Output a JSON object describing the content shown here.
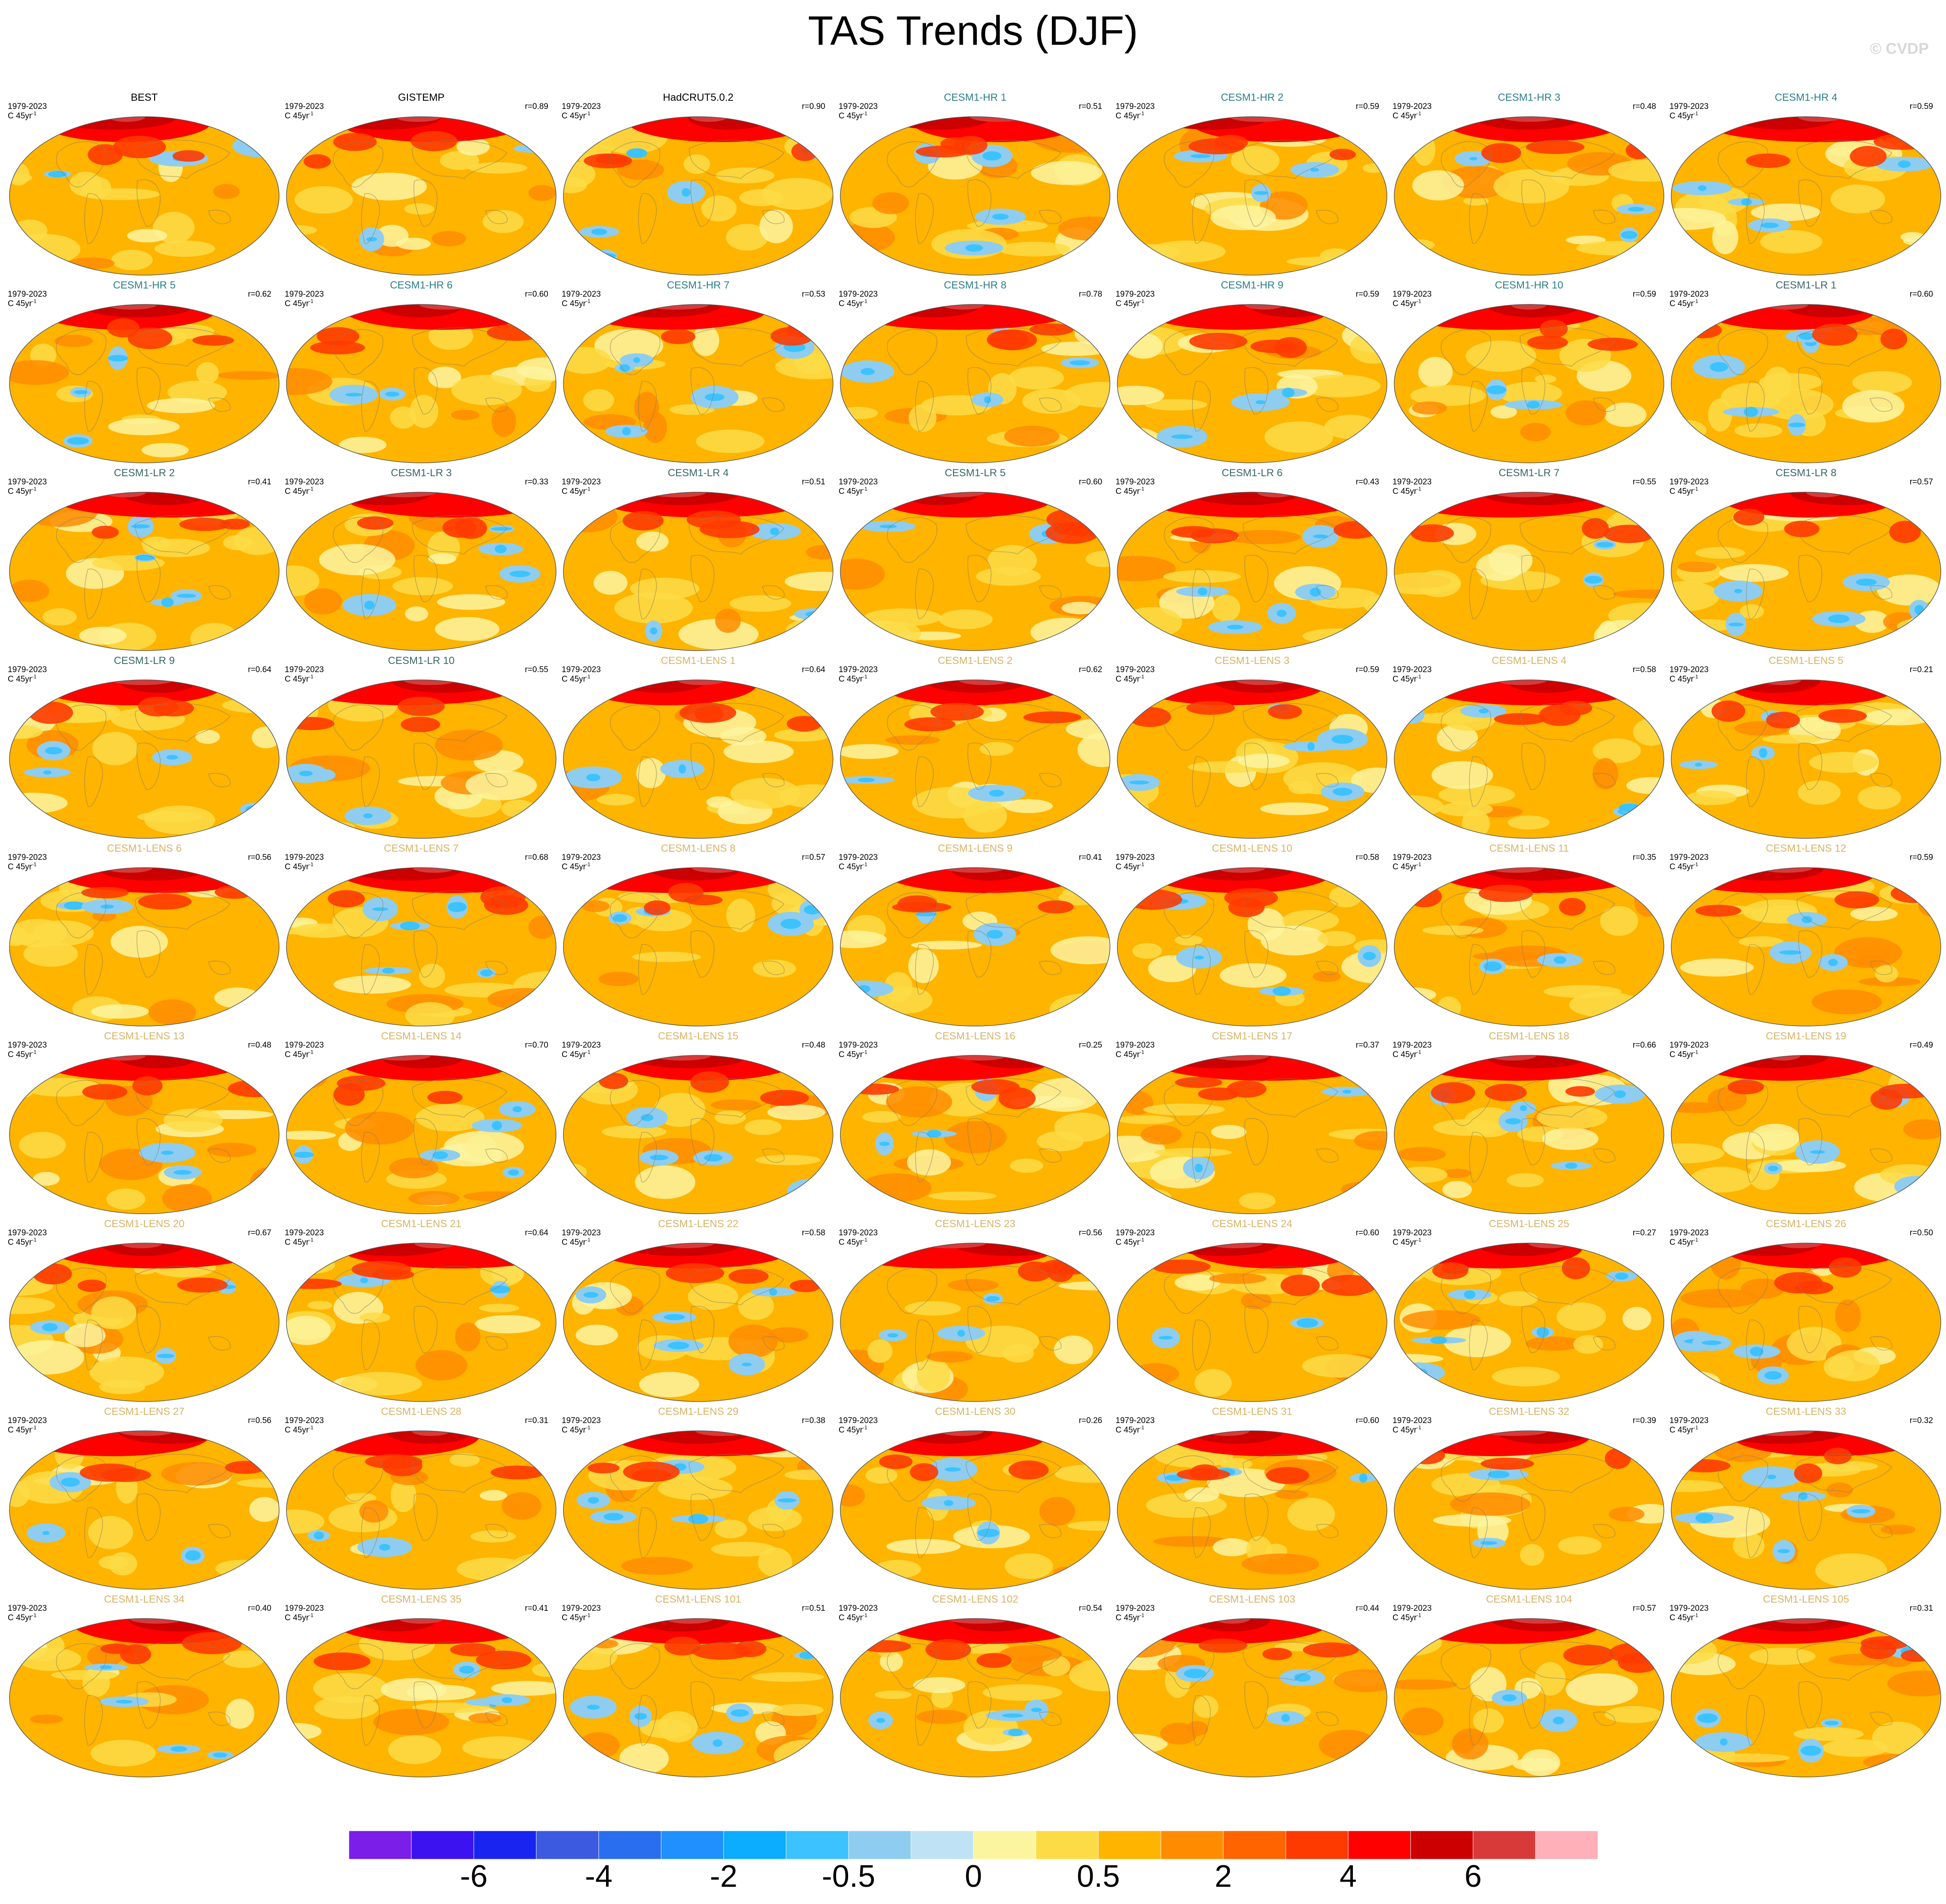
{
  "title": "TAS Trends (DJF)",
  "copyright": "© CVDP",
  "period": "1979-2023",
  "units": "C 45yr",
  "units_exponent": "-1",
  "name_colors": {
    "obs": "#000000",
    "hr": "#2a7f88",
    "lr": "#3a6668",
    "lens": "#d8b466"
  },
  "panels": [
    {
      "name": "BEST",
      "group": "obs",
      "corr": ""
    },
    {
      "name": "GISTEMP",
      "group": "obs",
      "corr": "r=0.89"
    },
    {
      "name": "HadCRUT5.0.2",
      "group": "obs",
      "corr": "r=0.90"
    },
    {
      "name": "CESM1-HR 1",
      "group": "hr",
      "corr": "r=0.51"
    },
    {
      "name": "CESM1-HR 2",
      "group": "hr",
      "corr": "r=0.59"
    },
    {
      "name": "CESM1-HR 3",
      "group": "hr",
      "corr": "r=0.48"
    },
    {
      "name": "CESM1-HR 4",
      "group": "hr",
      "corr": "r=0.59"
    },
    {
      "name": "CESM1-HR 5",
      "group": "hr",
      "corr": "r=0.62"
    },
    {
      "name": "CESM1-HR 6",
      "group": "hr",
      "corr": "r=0.60"
    },
    {
      "name": "CESM1-HR 7",
      "group": "hr",
      "corr": "r=0.53"
    },
    {
      "name": "CESM1-HR 8",
      "group": "hr",
      "corr": "r=0.78"
    },
    {
      "name": "CESM1-HR 9",
      "group": "hr",
      "corr": "r=0.59"
    },
    {
      "name": "CESM1-HR 10",
      "group": "hr",
      "corr": "r=0.59"
    },
    {
      "name": "CESM1-LR 1",
      "group": "lr",
      "corr": "r=0.60"
    },
    {
      "name": "CESM1-LR 2",
      "group": "lr",
      "corr": "r=0.41"
    },
    {
      "name": "CESM1-LR 3",
      "group": "lr",
      "corr": "r=0.33"
    },
    {
      "name": "CESM1-LR 4",
      "group": "lr",
      "corr": "r=0.51"
    },
    {
      "name": "CESM1-LR 5",
      "group": "lr",
      "corr": "r=0.60"
    },
    {
      "name": "CESM1-LR 6",
      "group": "lr",
      "corr": "r=0.43"
    },
    {
      "name": "CESM1-LR 7",
      "group": "lr",
      "corr": "r=0.55"
    },
    {
      "name": "CESM1-LR 8",
      "group": "lr",
      "corr": "r=0.57"
    },
    {
      "name": "CESM1-LR 9",
      "group": "lr",
      "corr": "r=0.64"
    },
    {
      "name": "CESM1-LR 10",
      "group": "lr",
      "corr": "r=0.55"
    },
    {
      "name": "CESM1-LENS 1",
      "group": "lens",
      "corr": "r=0.64"
    },
    {
      "name": "CESM1-LENS 2",
      "group": "lens",
      "corr": "r=0.62"
    },
    {
      "name": "CESM1-LENS 3",
      "group": "lens",
      "corr": "r=0.59"
    },
    {
      "name": "CESM1-LENS 4",
      "group": "lens",
      "corr": "r=0.58"
    },
    {
      "name": "CESM1-LENS 5",
      "group": "lens",
      "corr": "r=0.21"
    },
    {
      "name": "CESM1-LENS 6",
      "group": "lens",
      "corr": "r=0.56"
    },
    {
      "name": "CESM1-LENS 7",
      "group": "lens",
      "corr": "r=0.68"
    },
    {
      "name": "CESM1-LENS 8",
      "group": "lens",
      "corr": "r=0.57"
    },
    {
      "name": "CESM1-LENS 9",
      "group": "lens",
      "corr": "r=0.41"
    },
    {
      "name": "CESM1-LENS 10",
      "group": "lens",
      "corr": "r=0.58"
    },
    {
      "name": "CESM1-LENS 11",
      "group": "lens",
      "corr": "r=0.35"
    },
    {
      "name": "CESM1-LENS 12",
      "group": "lens",
      "corr": "r=0.59"
    },
    {
      "name": "CESM1-LENS 13",
      "group": "lens",
      "corr": "r=0.48"
    },
    {
      "name": "CESM1-LENS 14",
      "group": "lens",
      "corr": "r=0.70"
    },
    {
      "name": "CESM1-LENS 15",
      "group": "lens",
      "corr": "r=0.48"
    },
    {
      "name": "CESM1-LENS 16",
      "group": "lens",
      "corr": "r=0.25"
    },
    {
      "name": "CESM1-LENS 17",
      "group": "lens",
      "corr": "r=0.37"
    },
    {
      "name": "CESM1-LENS 18",
      "group": "lens",
      "corr": "r=0.66"
    },
    {
      "name": "CESM1-LENS 19",
      "group": "lens",
      "corr": "r=0.49"
    },
    {
      "name": "CESM1-LENS 20",
      "group": "lens",
      "corr": "r=0.67"
    },
    {
      "name": "CESM1-LENS 21",
      "group": "lens",
      "corr": "r=0.64"
    },
    {
      "name": "CESM1-LENS 22",
      "group": "lens",
      "corr": "r=0.58"
    },
    {
      "name": "CESM1-LENS 23",
      "group": "lens",
      "corr": "r=0.56"
    },
    {
      "name": "CESM1-LENS 24",
      "group": "lens",
      "corr": "r=0.60"
    },
    {
      "name": "CESM1-LENS 25",
      "group": "lens",
      "corr": "r=0.27"
    },
    {
      "name": "CESM1-LENS 26",
      "group": "lens",
      "corr": "r=0.50"
    },
    {
      "name": "CESM1-LENS 27",
      "group": "lens",
      "corr": "r=0.56"
    },
    {
      "name": "CESM1-LENS 28",
      "group": "lens",
      "corr": "r=0.31"
    },
    {
      "name": "CESM1-LENS 29",
      "group": "lens",
      "corr": "r=0.38"
    },
    {
      "name": "CESM1-LENS 30",
      "group": "lens",
      "corr": "r=0.26"
    },
    {
      "name": "CESM1-LENS 31",
      "group": "lens",
      "corr": "r=0.60"
    },
    {
      "name": "CESM1-LENS 32",
      "group": "lens",
      "corr": "r=0.39"
    },
    {
      "name": "CESM1-LENS 33",
      "group": "lens",
      "corr": "r=0.32"
    },
    {
      "name": "CESM1-LENS 34",
      "group": "lens",
      "corr": "r=0.40"
    },
    {
      "name": "CESM1-LENS 35",
      "group": "lens",
      "corr": "r=0.41"
    },
    {
      "name": "CESM1-LENS 101",
      "group": "lens",
      "corr": "r=0.51"
    },
    {
      "name": "CESM1-LENS 102",
      "group": "lens",
      "corr": "r=0.54"
    },
    {
      "name": "CESM1-LENS 103",
      "group": "lens",
      "corr": "r=0.44"
    },
    {
      "name": "CESM1-LENS 104",
      "group": "lens",
      "corr": "r=0.57"
    },
    {
      "name": "CESM1-LENS 105",
      "group": "lens",
      "corr": "r=0.31"
    }
  ],
  "colorbar": {
    "colors": [
      "#7a1ee8",
      "#3c12f0",
      "#1a24f0",
      "#3c5ae0",
      "#2a6ef0",
      "#2090ff",
      "#0cacff",
      "#3cc2ff",
      "#8ecdf0",
      "#bfe3f5",
      "#fcf5a0",
      "#fcdc46",
      "#ffb400",
      "#ff8c00",
      "#ff6400",
      "#ff3a00",
      "#ff0000",
      "#cc0000",
      "#d83a3a",
      "#ffb0b8"
    ],
    "tick_labels": [
      "-6",
      "-4",
      "-2",
      "-0.5",
      "0",
      "0.5",
      "2",
      "4",
      "6"
    ]
  }
}
